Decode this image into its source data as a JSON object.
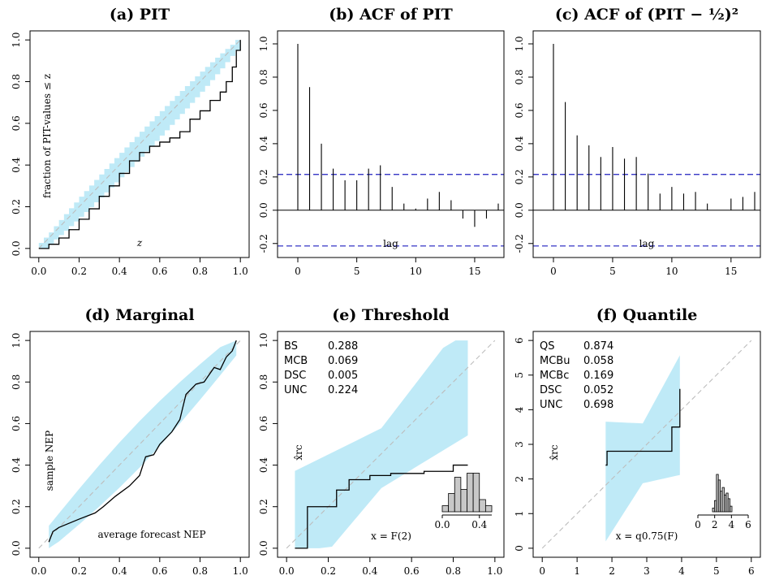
{
  "figure": {
    "panels": [
      {
        "id": "a",
        "title": "(a) PIT",
        "xlabel": "z",
        "ylabel": "fraction of PIT-values ≤ z",
        "xticks": [
          "0.0",
          "0.2",
          "0.4",
          "0.6",
          "0.8",
          "1.0"
        ],
        "yticks": [
          "0.0",
          "0.2",
          "0.4",
          "0.6",
          "0.8",
          "1.0"
        ]
      },
      {
        "id": "b",
        "title": "(b) ACF of PIT",
        "xlabel": "lag",
        "xticks": [
          "0",
          "5",
          "10",
          "15"
        ],
        "yticks": [
          "-0.2",
          "0.0",
          "0.2",
          "0.4",
          "0.6",
          "0.8",
          "1.0"
        ]
      },
      {
        "id": "c",
        "title": "(c) ACF of (PIT − ½)²",
        "xlabel": "lag",
        "xticks": [
          "0",
          "5",
          "10",
          "15"
        ],
        "yticks": [
          "-0.2",
          "0.0",
          "0.2",
          "0.4",
          "0.6",
          "0.8",
          "1.0"
        ]
      },
      {
        "id": "d",
        "title": "(d) Marginal",
        "xlabel": "average forecast NEP",
        "ylabel": "sample NEP",
        "xticks": [
          "0.0",
          "0.2",
          "0.4",
          "0.6",
          "0.8",
          "1.0"
        ],
        "yticks": [
          "0.0",
          "0.2",
          "0.4",
          "0.6",
          "0.8",
          "1.0"
        ]
      },
      {
        "id": "e",
        "title": "(e) Threshold",
        "xlabel": "x = F(2)",
        "ylabel": "x̂rc",
        "xticks": [
          "0.0",
          "0.2",
          "0.4",
          "0.6",
          "0.8",
          "1.0"
        ],
        "yticks": [
          "0.0",
          "0.2",
          "0.4",
          "0.6",
          "0.8",
          "1.0"
        ],
        "inset_ticks": [
          "0.0",
          "0.4"
        ],
        "stats": [
          {
            "k": "BS",
            "v": "0.288"
          },
          {
            "k": "MCB",
            "v": "0.069"
          },
          {
            "k": "DSC",
            "v": "0.005"
          },
          {
            "k": "UNC",
            "v": "0.224"
          }
        ]
      },
      {
        "id": "f",
        "title": "(f) Quantile",
        "xlabel": "x = q0.75(F)",
        "ylabel": "x̂rc",
        "xticks": [
          "0",
          "1",
          "2",
          "3",
          "4",
          "5",
          "6"
        ],
        "yticks": [
          "0",
          "1",
          "2",
          "3",
          "4",
          "5",
          "6"
        ],
        "inset_ticks": [
          "0",
          "2",
          "4",
          "6"
        ],
        "stats": [
          {
            "k": "QS",
            "v": "0.874"
          },
          {
            "k": "MCBu",
            "v": "0.058"
          },
          {
            "k": "MCBc",
            "v": "0.169"
          },
          {
            "k": "DSC",
            "v": "0.052"
          },
          {
            "k": "UNC",
            "v": "0.698"
          }
        ]
      }
    ]
  },
  "colors": {
    "band": "#bfeaf7",
    "diagonal": "#bdbdbd",
    "ci_lines": "#1f1fbf",
    "curve": "#000000",
    "hist": "#c8c8c8"
  },
  "chart_data": [
    {
      "id": "a",
      "type": "line",
      "xlim": [
        0,
        1
      ],
      "ylim": [
        0,
        1
      ],
      "x": [
        0.0,
        0.05,
        0.1,
        0.15,
        0.2,
        0.25,
        0.3,
        0.35,
        0.4,
        0.45,
        0.5,
        0.55,
        0.6,
        0.65,
        0.7,
        0.75,
        0.8,
        0.85,
        0.9,
        0.93,
        0.96,
        0.98,
        1.0
      ],
      "y": [
        0.0,
        0.02,
        0.05,
        0.09,
        0.14,
        0.19,
        0.25,
        0.3,
        0.36,
        0.42,
        0.46,
        0.49,
        0.51,
        0.53,
        0.56,
        0.62,
        0.66,
        0.71,
        0.75,
        0.8,
        0.87,
        0.95,
        1.0
      ],
      "band_halfwidth": 0.06
    },
    {
      "id": "b",
      "type": "bar",
      "ylim": [
        -0.25,
        1.0
      ],
      "xlim": [
        0,
        17
      ],
      "lags": [
        0,
        1,
        2,
        3,
        4,
        5,
        6,
        7,
        8,
        9,
        10,
        11,
        12,
        13,
        14,
        15,
        16,
        17
      ],
      "values": [
        1.0,
        0.74,
        0.4,
        0.25,
        0.18,
        0.18,
        0.25,
        0.27,
        0.14,
        0.04,
        0.01,
        0.07,
        0.11,
        0.06,
        -0.05,
        -0.1,
        -0.05,
        0.04
      ],
      "ci": 0.215
    },
    {
      "id": "c",
      "type": "bar",
      "ylim": [
        -0.25,
        1.0
      ],
      "xlim": [
        0,
        17
      ],
      "lags": [
        0,
        1,
        2,
        3,
        4,
        5,
        6,
        7,
        8,
        9,
        10,
        11,
        12,
        13,
        14,
        15,
        16,
        17
      ],
      "values": [
        1.0,
        0.65,
        0.45,
        0.39,
        0.32,
        0.38,
        0.31,
        0.32,
        0.22,
        0.1,
        0.14,
        0.1,
        0.11,
        0.04,
        0.0,
        0.07,
        0.08,
        0.11
      ],
      "ci": 0.215
    },
    {
      "id": "d",
      "type": "line",
      "xlim": [
        0,
        1
      ],
      "ylim": [
        0,
        1
      ],
      "x": [
        0.05,
        0.07,
        0.1,
        0.15,
        0.2,
        0.28,
        0.32,
        0.38,
        0.45,
        0.5,
        0.53,
        0.57,
        0.6,
        0.66,
        0.7,
        0.73,
        0.78,
        0.82,
        0.87,
        0.9,
        0.93,
        0.96,
        0.98
      ],
      "y": [
        0.03,
        0.08,
        0.1,
        0.12,
        0.14,
        0.17,
        0.2,
        0.25,
        0.3,
        0.35,
        0.44,
        0.45,
        0.5,
        0.56,
        0.62,
        0.74,
        0.79,
        0.8,
        0.87,
        0.86,
        0.92,
        0.95,
        1.0
      ],
      "band_halfwidth": 0.08
    },
    {
      "id": "e",
      "type": "line",
      "xlim": [
        0,
        1
      ],
      "ylim": [
        0,
        1
      ],
      "x": [
        0.04,
        0.1,
        0.23,
        0.24,
        0.27,
        0.3,
        0.34,
        0.4,
        0.5,
        0.58,
        0.66,
        0.7,
        0.75,
        0.8,
        0.87
      ],
      "y": [
        0.0,
        0.2,
        0.2,
        0.28,
        0.28,
        0.33,
        0.33,
        0.35,
        0.36,
        0.36,
        0.37,
        0.37,
        0.37,
        0.4,
        0.4
      ],
      "hist": [
        0.15,
        0.45,
        0.85,
        0.55,
        0.95,
        0.95,
        0.3,
        0.15
      ],
      "hist_range": [
        0.0,
        0.75
      ]
    },
    {
      "id": "f",
      "type": "line",
      "xlim": [
        0,
        6
      ],
      "ylim": [
        0,
        6
      ],
      "x": [
        1.82,
        1.86,
        2.4,
        3.0,
        3.7,
        3.72,
        3.9,
        3.95
      ],
      "y": [
        2.4,
        2.8,
        2.8,
        2.8,
        2.8,
        3.5,
        3.5,
        4.6
      ],
      "hist": [
        0.1,
        0.3,
        1.0,
        0.85,
        0.55,
        0.65,
        0.45,
        0.5,
        0.35,
        0.15
      ],
      "hist_range": [
        1.8,
        4.0
      ]
    }
  ]
}
